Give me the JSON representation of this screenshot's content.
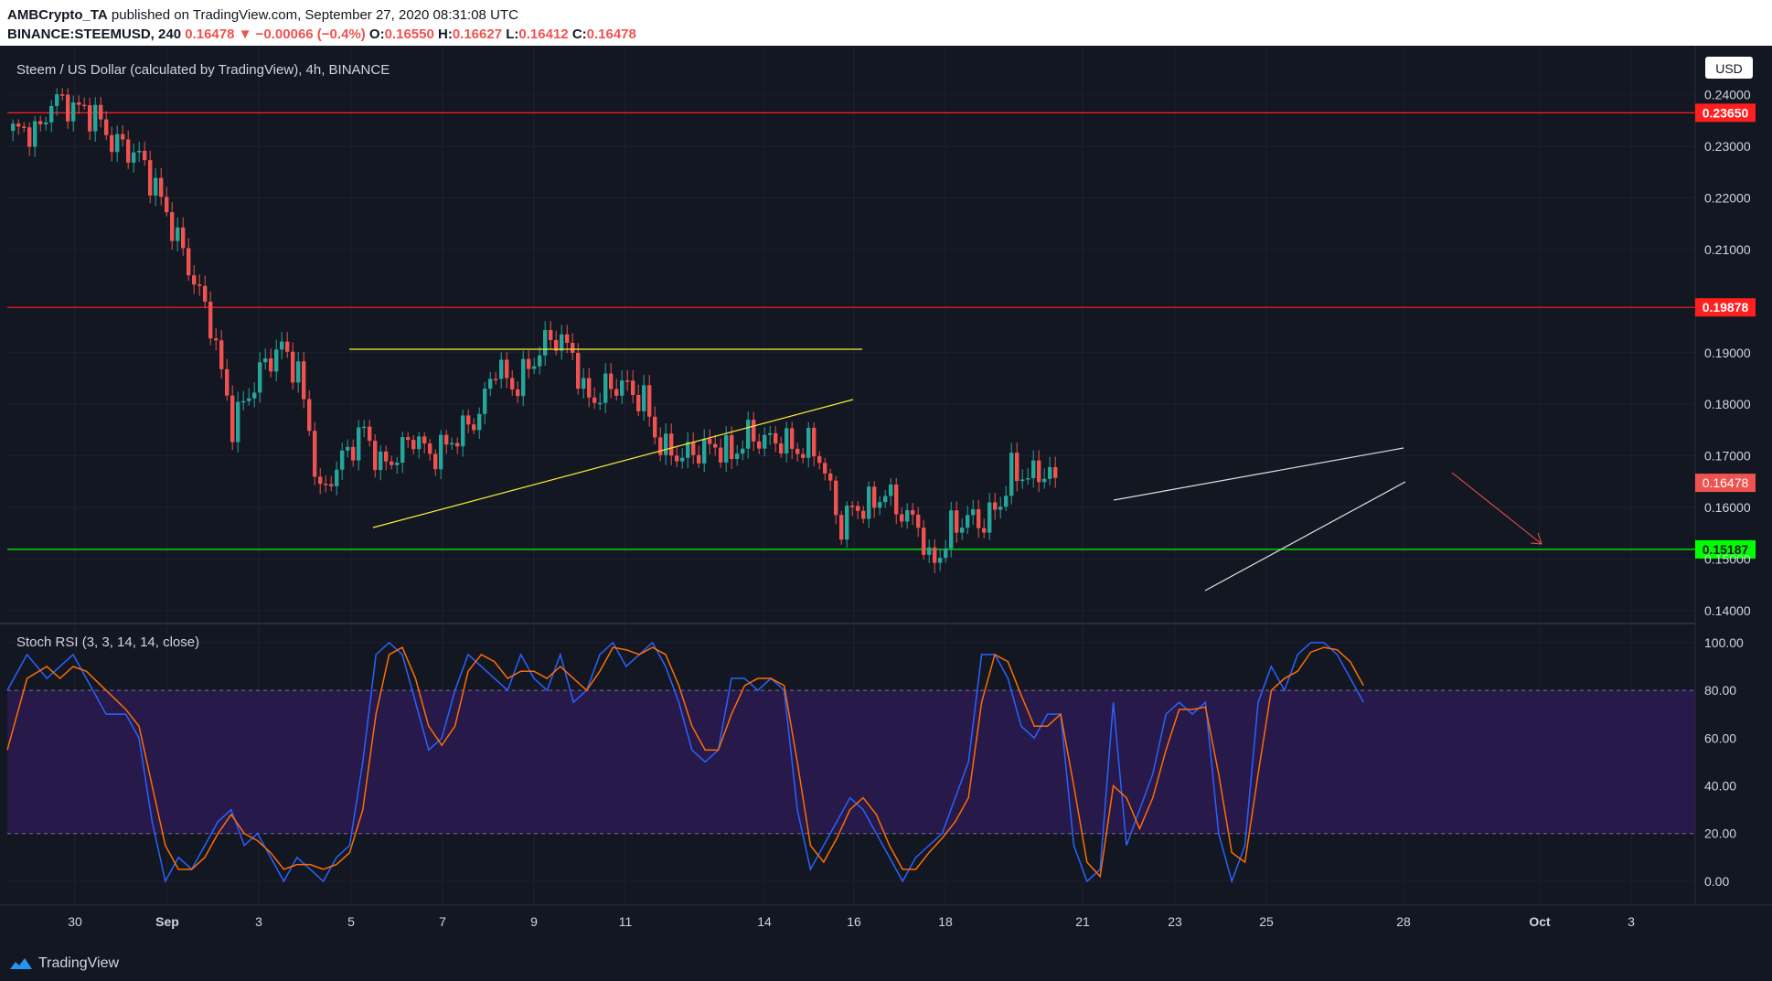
{
  "header": {
    "publisher": "AMBCrypto_TA",
    "published_text": "published on TradingView.com, September 27, 2020 08:31:08 UTC",
    "symbol": "BINANCE:STEEMUSD, 240",
    "last": "0.16478",
    "change_arrow": "▼",
    "change": "−0.00066 (−0.4%)",
    "o_label": "O:",
    "o": "0.16550",
    "h_label": "H:",
    "h": "0.16627",
    "l_label": "L:",
    "l": "0.16412",
    "c_label": "C:",
    "c": "0.16478"
  },
  "footer": {
    "brand": "TradingView",
    "icon": "tradingview-logo-icon"
  },
  "colors": {
    "up": "#26a69a",
    "down": "#ef5350",
    "k_line": "#2962ff",
    "d_line": "#ff6d00",
    "band": "#2a1a4e"
  },
  "chart_data": [
    {
      "type": "candlestick",
      "title": "Steem / US Dollar (calculated by TradingView), 4h, BINANCE",
      "currency": "USD",
      "ylim": [
        0.1375,
        0.2495
      ],
      "x_tick_labels": [
        "30",
        "Sep",
        "3",
        "5",
        "7",
        "9",
        "11",
        "14",
        "16",
        "18",
        "21",
        "23",
        "25",
        "28",
        "Oct",
        "3"
      ],
      "y_ticks": [
        "0.24000",
        "0.23000",
        "0.22000",
        "0.21000",
        "0.19000",
        "0.18000",
        "0.17000",
        "0.16000",
        "0.15000",
        "0.14000"
      ],
      "price_ticks": [
        0.24,
        0.23,
        0.22,
        0.21,
        0.19,
        0.18,
        0.17,
        0.16,
        0.15,
        0.14
      ],
      "horizontal_levels": [
        {
          "value": 0.2365,
          "label": "0.23650",
          "color": "#ff1f1f"
        },
        {
          "value": 0.19878,
          "label": "0.19878",
          "color": "#ff1f1f"
        },
        {
          "value": 0.15187,
          "label": "0.15187",
          "color": "#00ff00"
        }
      ],
      "last_price": {
        "value": 0.16478,
        "label": "0.16478"
      },
      "close_path": [
        [
          0,
          0.233
        ],
        [
          5,
          0.233
        ],
        [
          7,
          0.239
        ],
        [
          10,
          0.238
        ],
        [
          15,
          0.236
        ],
        [
          18,
          0.231
        ],
        [
          20,
          0.23
        ],
        [
          23,
          0.228
        ],
        [
          26,
          0.222
        ],
        [
          30,
          0.212
        ],
        [
          33,
          0.204
        ],
        [
          36,
          0.196
        ],
        [
          38,
          0.186
        ],
        [
          40,
          0.176
        ],
        [
          43,
          0.182
        ],
        [
          46,
          0.188
        ],
        [
          49,
          0.191
        ],
        [
          52,
          0.186
        ],
        [
          54,
          0.175
        ],
        [
          56,
          0.162
        ],
        [
          58,
          0.166
        ],
        [
          61,
          0.171
        ],
        [
          64,
          0.175
        ],
        [
          67,
          0.168
        ],
        [
          70,
          0.17
        ],
        [
          73,
          0.174
        ],
        [
          76,
          0.17
        ],
        [
          79,
          0.172
        ],
        [
          82,
          0.175
        ],
        [
          85,
          0.178
        ],
        [
          88,
          0.188
        ],
        [
          91,
          0.183
        ],
        [
          94,
          0.187
        ],
        [
          97,
          0.192
        ],
        [
          99,
          0.193
        ],
        [
          102,
          0.19
        ],
        [
          104,
          0.182
        ],
        [
          106,
          0.181
        ],
        [
          108,
          0.183
        ],
        [
          111,
          0.184
        ],
        [
          113,
          0.182
        ],
        [
          115,
          0.181
        ],
        [
          117,
          0.174
        ],
        [
          119,
          0.171
        ],
        [
          122,
          0.17
        ],
        [
          125,
          0.171
        ],
        [
          128,
          0.172
        ],
        [
          131,
          0.17
        ],
        [
          134,
          0.174
        ],
        [
          137,
          0.173
        ],
        [
          140,
          0.173
        ],
        [
          143,
          0.171
        ],
        [
          145,
          0.172
        ],
        [
          147,
          0.17
        ],
        [
          149,
          0.163
        ],
        [
          151,
          0.156
        ],
        [
          153,
          0.16
        ],
        [
          155,
          0.16
        ],
        [
          157,
          0.161
        ],
        [
          159,
          0.163
        ],
        [
          161,
          0.16
        ],
        [
          163,
          0.158
        ],
        [
          165,
          0.157
        ],
        [
          167,
          0.149
        ],
        [
          169,
          0.151
        ],
        [
          171,
          0.156
        ],
        [
          174,
          0.158
        ],
        [
          177,
          0.157
        ],
        [
          180,
          0.161
        ],
        [
          182,
          0.167
        ],
        [
          185,
          0.166
        ],
        [
          188,
          0.167
        ],
        [
          190,
          0.165
        ]
      ],
      "total_bars": 190
    },
    {
      "type": "line",
      "title": "Stoch RSI (3, 3, 14, 14, close)",
      "ylim": [
        -10,
        108
      ],
      "y_ticks": [
        "100.00",
        "80.00",
        "60.00",
        "40.00",
        "20.00",
        "0.00"
      ],
      "y_tick_values": [
        100,
        80,
        60,
        40,
        20,
        0
      ],
      "bands": [
        20,
        80
      ],
      "series": [
        {
          "color": "#2962ff",
          "points": [
            [
              0,
              80
            ],
            [
              3,
              95
            ],
            [
              6,
              85
            ],
            [
              8,
              90
            ],
            [
              10,
              95
            ],
            [
              12,
              85
            ],
            [
              15,
              70
            ],
            [
              18,
              70
            ],
            [
              20,
              60
            ],
            [
              22,
              25
            ],
            [
              24,
              0
            ],
            [
              26,
              10
            ],
            [
              28,
              5
            ],
            [
              30,
              15
            ],
            [
              32,
              25
            ],
            [
              34,
              30
            ],
            [
              36,
              15
            ],
            [
              38,
              20
            ],
            [
              40,
              10
            ],
            [
              42,
              0
            ],
            [
              44,
              10
            ],
            [
              46,
              5
            ],
            [
              48,
              0
            ],
            [
              50,
              10
            ],
            [
              52,
              15
            ],
            [
              54,
              50
            ],
            [
              56,
              95
            ],
            [
              58,
              100
            ],
            [
              60,
              95
            ],
            [
              62,
              75
            ],
            [
              64,
              55
            ],
            [
              66,
              60
            ],
            [
              68,
              80
            ],
            [
              70,
              95
            ],
            [
              72,
              90
            ],
            [
              74,
              85
            ],
            [
              76,
              80
            ],
            [
              78,
              95
            ],
            [
              80,
              85
            ],
            [
              82,
              80
            ],
            [
              84,
              95
            ],
            [
              86,
              75
            ],
            [
              88,
              80
            ],
            [
              90,
              95
            ],
            [
              92,
              100
            ],
            [
              94,
              90
            ],
            [
              96,
              95
            ],
            [
              98,
              100
            ],
            [
              100,
              90
            ],
            [
              102,
              75
            ],
            [
              104,
              55
            ],
            [
              106,
              50
            ],
            [
              108,
              55
            ],
            [
              110,
              85
            ],
            [
              112,
              85
            ],
            [
              114,
              80
            ],
            [
              116,
              85
            ],
            [
              118,
              80
            ],
            [
              120,
              30
            ],
            [
              122,
              5
            ],
            [
              124,
              15
            ],
            [
              126,
              25
            ],
            [
              128,
              35
            ],
            [
              130,
              30
            ],
            [
              132,
              20
            ],
            [
              134,
              10
            ],
            [
              136,
              0
            ],
            [
              138,
              10
            ],
            [
              140,
              15
            ],
            [
              142,
              20
            ],
            [
              144,
              35
            ],
            [
              146,
              50
            ],
            [
              148,
              95
            ],
            [
              150,
              95
            ],
            [
              152,
              85
            ],
            [
              154,
              65
            ],
            [
              156,
              60
            ],
            [
              158,
              70
            ],
            [
              160,
              70
            ],
            [
              162,
              15
            ],
            [
              164,
              0
            ],
            [
              166,
              5
            ],
            [
              168,
              75
            ],
            [
              170,
              15
            ],
            [
              172,
              30
            ],
            [
              174,
              45
            ],
            [
              176,
              70
            ],
            [
              178,
              75
            ],
            [
              180,
              70
            ],
            [
              182,
              75
            ],
            [
              184,
              20
            ],
            [
              186,
              0
            ],
            [
              188,
              15
            ],
            [
              190,
              75
            ],
            [
              192,
              90
            ],
            [
              194,
              80
            ],
            [
              196,
              95
            ],
            [
              198,
              100
            ],
            [
              200,
              100
            ],
            [
              202,
              95
            ],
            [
              204,
              85
            ],
            [
              206,
              75
            ]
          ]
        },
        {
          "color": "#ff6d00",
          "points": [
            [
              0,
              55
            ],
            [
              3,
              85
            ],
            [
              6,
              90
            ],
            [
              8,
              85
            ],
            [
              10,
              90
            ],
            [
              12,
              88
            ],
            [
              15,
              80
            ],
            [
              18,
              72
            ],
            [
              20,
              65
            ],
            [
              22,
              40
            ],
            [
              24,
              15
            ],
            [
              26,
              5
            ],
            [
              28,
              5
            ],
            [
              30,
              10
            ],
            [
              32,
              20
            ],
            [
              34,
              28
            ],
            [
              36,
              20
            ],
            [
              38,
              17
            ],
            [
              40,
              12
            ],
            [
              42,
              5
            ],
            [
              44,
              7
            ],
            [
              46,
              7
            ],
            [
              48,
              5
            ],
            [
              50,
              7
            ],
            [
              52,
              12
            ],
            [
              54,
              30
            ],
            [
              56,
              70
            ],
            [
              58,
              95
            ],
            [
              60,
              98
            ],
            [
              62,
              85
            ],
            [
              64,
              65
            ],
            [
              66,
              57
            ],
            [
              68,
              65
            ],
            [
              70,
              88
            ],
            [
              72,
              95
            ],
            [
              74,
              92
            ],
            [
              76,
              85
            ],
            [
              78,
              88
            ],
            [
              80,
              88
            ],
            [
              82,
              85
            ],
            [
              84,
              90
            ],
            [
              86,
              85
            ],
            [
              88,
              80
            ],
            [
              90,
              88
            ],
            [
              92,
              98
            ],
            [
              94,
              97
            ],
            [
              96,
              95
            ],
            [
              98,
              98
            ],
            [
              100,
              95
            ],
            [
              102,
              82
            ],
            [
              104,
              65
            ],
            [
              106,
              55
            ],
            [
              108,
              55
            ],
            [
              110,
              70
            ],
            [
              112,
              82
            ],
            [
              114,
              85
            ],
            [
              116,
              85
            ],
            [
              118,
              82
            ],
            [
              120,
              50
            ],
            [
              122,
              15
            ],
            [
              124,
              8
            ],
            [
              126,
              18
            ],
            [
              128,
              30
            ],
            [
              130,
              35
            ],
            [
              132,
              28
            ],
            [
              134,
              15
            ],
            [
              136,
              5
            ],
            [
              138,
              5
            ],
            [
              140,
              12
            ],
            [
              142,
              18
            ],
            [
              144,
              25
            ],
            [
              146,
              35
            ],
            [
              148,
              75
            ],
            [
              150,
              95
            ],
            [
              152,
              92
            ],
            [
              154,
              78
            ],
            [
              156,
              65
            ],
            [
              158,
              65
            ],
            [
              160,
              70
            ],
            [
              162,
              40
            ],
            [
              164,
              8
            ],
            [
              166,
              2
            ],
            [
              168,
              40
            ],
            [
              170,
              35
            ],
            [
              172,
              22
            ],
            [
              174,
              35
            ],
            [
              176,
              55
            ],
            [
              178,
              72
            ],
            [
              180,
              72
            ],
            [
              182,
              73
            ],
            [
              184,
              45
            ],
            [
              186,
              12
            ],
            [
              188,
              8
            ],
            [
              190,
              45
            ],
            [
              192,
              80
            ],
            [
              194,
              85
            ],
            [
              196,
              88
            ],
            [
              198,
              96
            ],
            [
              200,
              98
            ],
            [
              202,
              97
            ],
            [
              204,
              92
            ],
            [
              206,
              82
            ]
          ]
        }
      ]
    }
  ]
}
